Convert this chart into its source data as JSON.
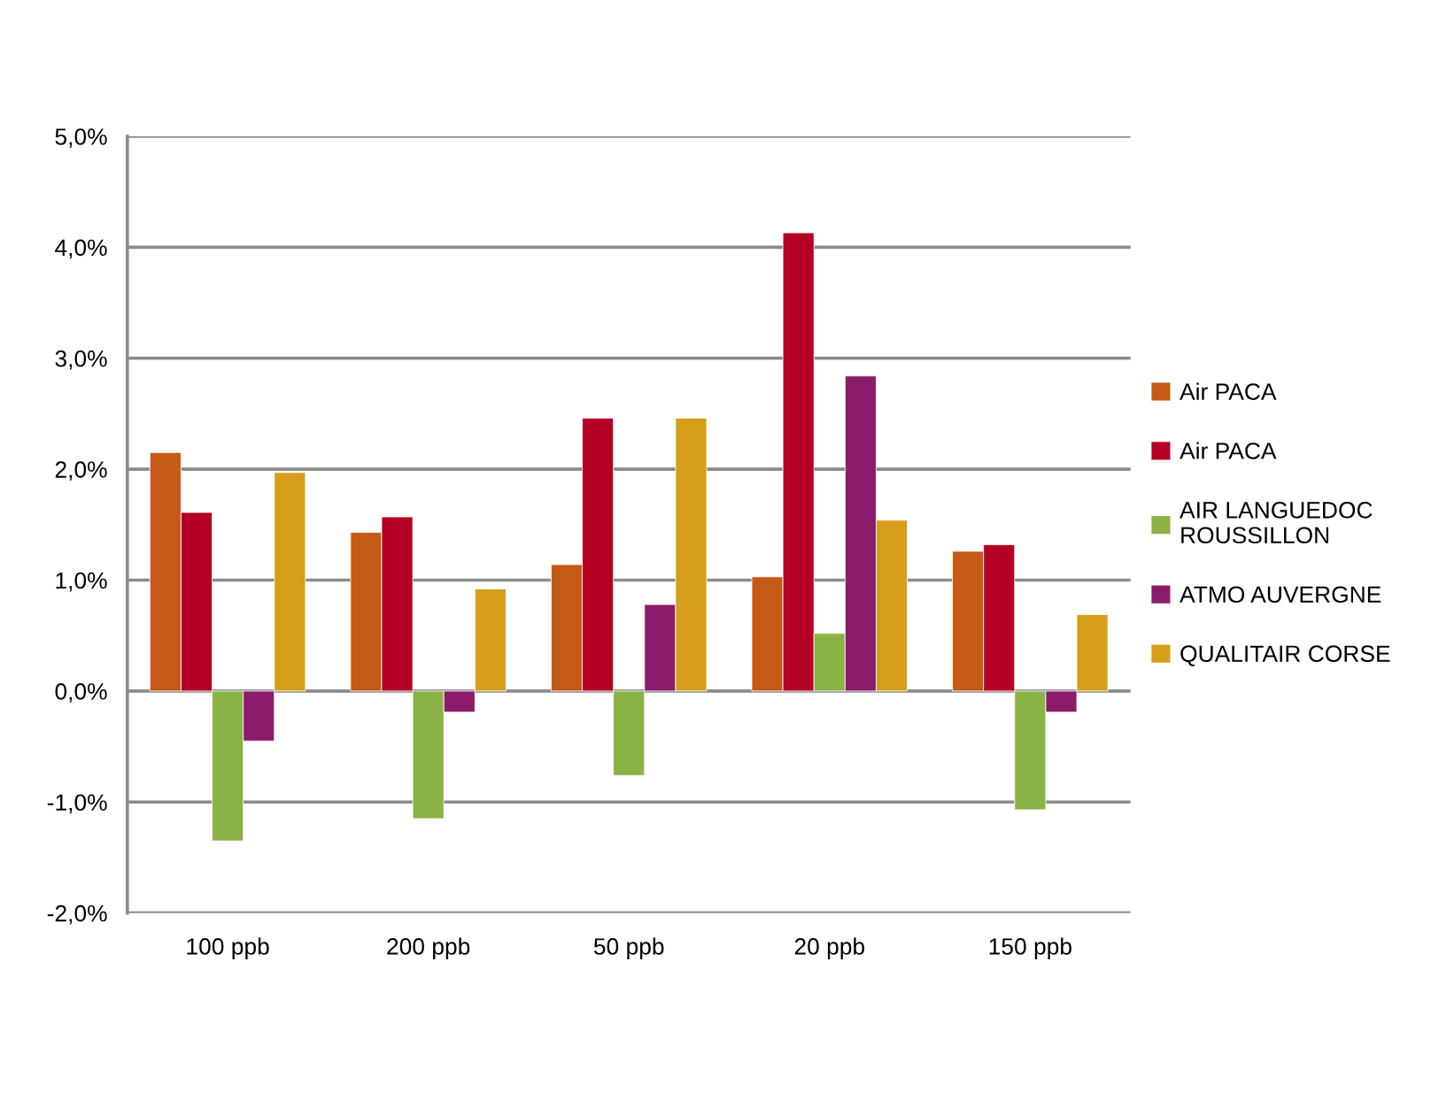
{
  "chart_data": {
    "type": "bar",
    "categories": [
      "100 ppb",
      "200 ppb",
      "50 ppb",
      "20 ppb",
      "150 ppb"
    ],
    "series": [
      {
        "name": "Air PACA",
        "color": "#c55a17",
        "values": [
          2.15,
          1.43,
          1.14,
          1.03,
          1.26
        ]
      },
      {
        "name": "Air PACA",
        "color": "#b30024",
        "values": [
          1.61,
          1.57,
          2.46,
          4.13,
          1.32
        ]
      },
      {
        "name": "AIR LANGUEDOC ROUSSILLON",
        "color": "#8bb244",
        "values": [
          -1.35,
          -1.15,
          -0.76,
          0.52,
          -1.07
        ]
      },
      {
        "name": "ATMO AUVERGNE",
        "color": "#8b1c6c",
        "values": [
          -0.45,
          -0.19,
          0.78,
          2.84,
          -0.19
        ]
      },
      {
        "name": "QUALITAIR CORSE",
        "color": "#d69e1a",
        "values": [
          1.97,
          0.92,
          2.46,
          1.54,
          0.69
        ]
      }
    ],
    "ylim": [
      -2,
      5
    ],
    "yticks": [
      {
        "value": -2,
        "label": "-2,0%"
      },
      {
        "value": -1,
        "label": "-1,0%"
      },
      {
        "value": 0,
        "label": "0,0%"
      },
      {
        "value": 1,
        "label": "1,0%"
      },
      {
        "value": 2,
        "label": "2,0%"
      },
      {
        "value": 3,
        "label": "3,0%"
      },
      {
        "value": 4,
        "label": "4,0%"
      },
      {
        "value": 5,
        "label": "5,0%"
      }
    ],
    "grid": "y",
    "legend": "right"
  }
}
